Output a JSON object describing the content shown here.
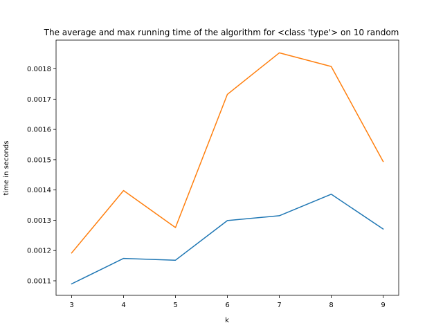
{
  "chart_data": {
    "type": "line",
    "title": "The average and max running time of the algorithm for <class 'type'> on 10 random",
    "xlabel": "k",
    "ylabel": "time in seconds",
    "x": [
      3,
      4,
      5,
      6,
      7,
      8,
      9
    ],
    "xlim": [
      2.7,
      9.3
    ],
    "ylim": [
      0.001052,
      0.001895
    ],
    "xticks": [
      3,
      4,
      5,
      6,
      7,
      8,
      9
    ],
    "yticks": [
      0.0011,
      0.0012,
      0.0013,
      0.0014,
      0.0015,
      0.0016,
      0.0017,
      0.0018
    ],
    "ytick_labels": [
      "0.0011",
      "0.0012",
      "0.0013",
      "0.0014",
      "0.0015",
      "0.0016",
      "0.0017",
      "0.0018"
    ],
    "grid": false,
    "series": [
      {
        "color": "#1f77b4",
        "values": [
          0.00109,
          0.001174,
          0.001168,
          0.001299,
          0.001315,
          0.001386,
          0.001271
        ]
      },
      {
        "color": "#ff7f0e",
        "values": [
          0.001192,
          0.001398,
          0.001276,
          0.001716,
          0.001853,
          0.001808,
          0.001494
        ]
      }
    ]
  }
}
